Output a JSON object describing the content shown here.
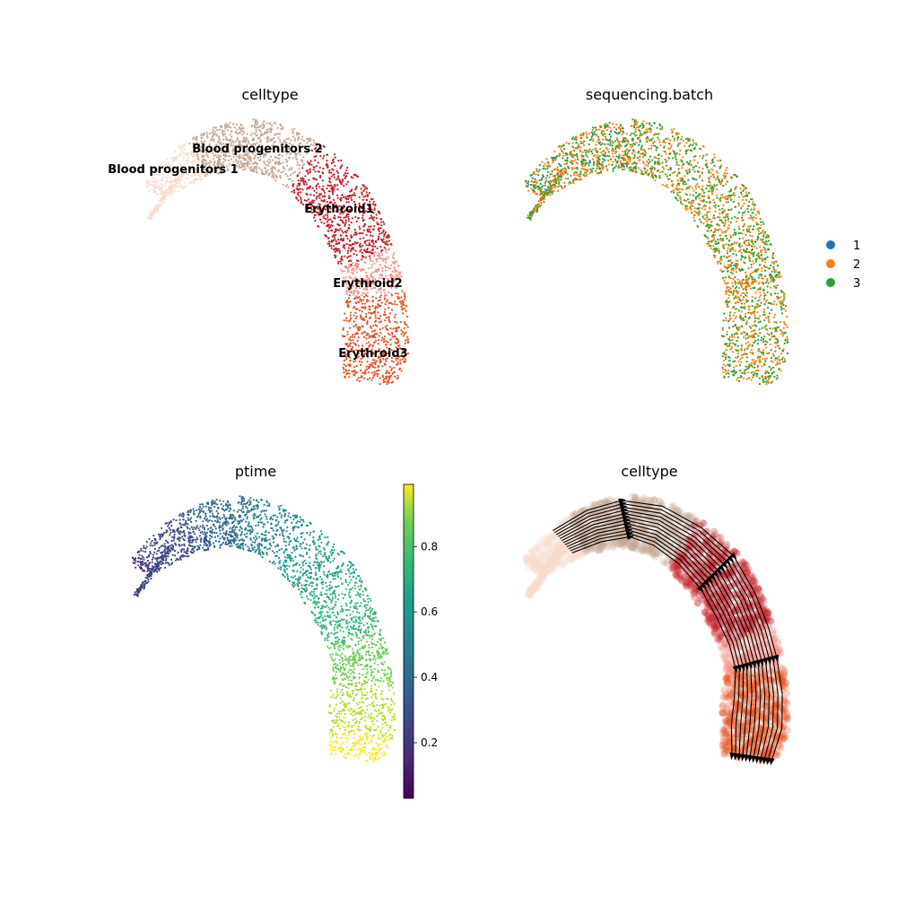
{
  "chart_data": [
    {
      "type": "scatter",
      "title": "celltype",
      "color_by": "categorical",
      "categories": [
        "Blood progenitors 1",
        "Blood progenitors 2",
        "Erythroid1",
        "Erythroid2",
        "Erythroid3"
      ],
      "colors": [
        "#f7dccd",
        "#c6a692",
        "#c51b23",
        "#f4948a",
        "#e6501f"
      ],
      "on_data_labels": true
    },
    {
      "type": "scatter",
      "title": "sequencing.batch",
      "color_by": "categorical",
      "legend": {
        "placement": "right",
        "entries": [
          "1",
          "2",
          "3"
        ]
      },
      "colors": [
        "#1f77b4",
        "#ff7f0e",
        "#2ca02c"
      ]
    },
    {
      "type": "scatter",
      "title": "ptime",
      "color_by": "continuous",
      "colormap": "viridis",
      "colorbar": {
        "range": [
          0.03,
          0.99
        ],
        "ticks": [
          0.2,
          0.4,
          0.6,
          0.8
        ],
        "tick_labels": [
          "0.2",
          "0.4",
          "0.6",
          "0.8"
        ]
      }
    },
    {
      "type": "scatter",
      "title": "celltype",
      "color_by": "categorical",
      "overlay": "velocity streamlines",
      "colors": [
        "#f7dccd",
        "#c6a692",
        "#c51b23",
        "#f4948a",
        "#e6501f"
      ]
    }
  ]
}
